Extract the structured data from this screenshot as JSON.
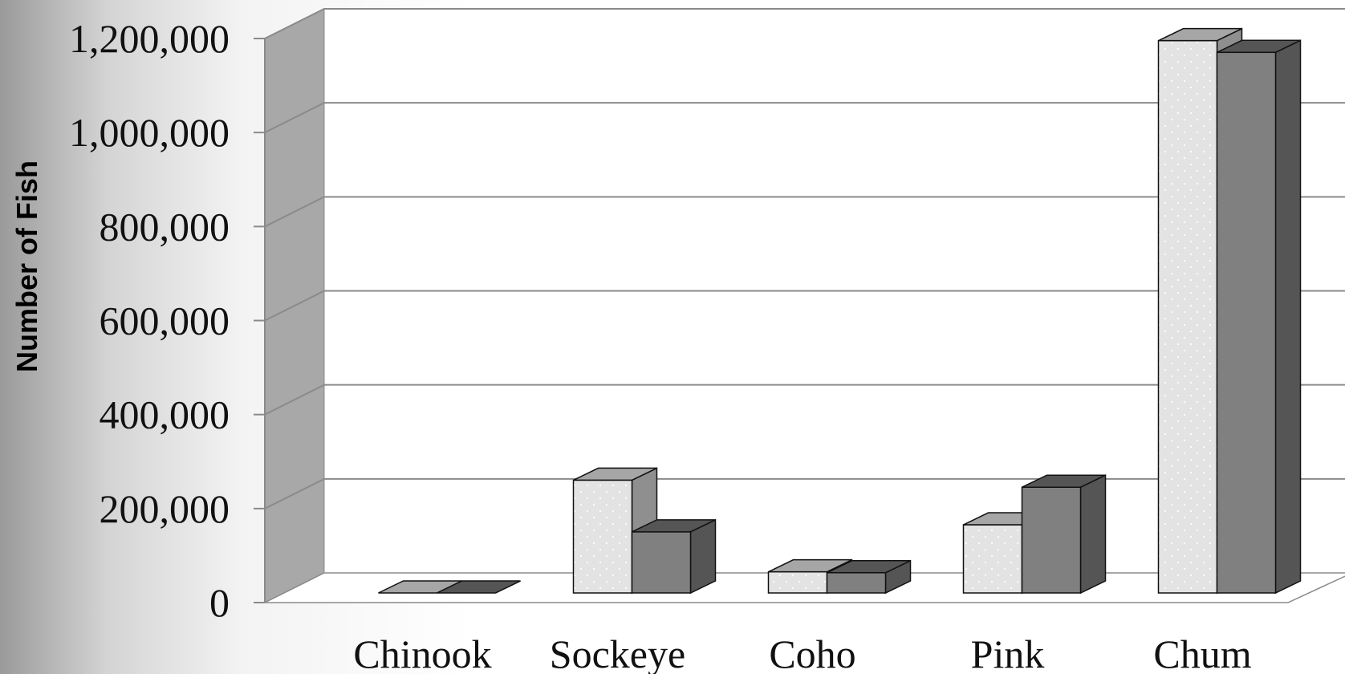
{
  "chart_data": {
    "type": "bar",
    "style": "3d-clustered-column",
    "ylabel": "Number of Fish",
    "xlabel": "",
    "title": "",
    "categories": [
      "Chinook",
      "Sockeye",
      "Coho",
      "Pink",
      "Chum"
    ],
    "series": [
      {
        "values": [
          0,
          240000,
          45000,
          145000,
          1175000
        ],
        "color": "#e3e3e3",
        "pattern": "dotted"
      },
      {
        "values": [
          0,
          130000,
          43000,
          225000,
          1150000
        ],
        "color": "#808080",
        "pattern": "solid"
      }
    ],
    "ylim": [
      0,
      1200000
    ],
    "yticks": [
      0,
      200000,
      400000,
      600000,
      800000,
      1000000,
      1200000
    ],
    "ytick_labels": [
      "0",
      "200,000",
      "400,000",
      "600,000",
      "800,000",
      "1,000,000",
      "1,200,000"
    ],
    "grid": true,
    "legend": "none"
  }
}
